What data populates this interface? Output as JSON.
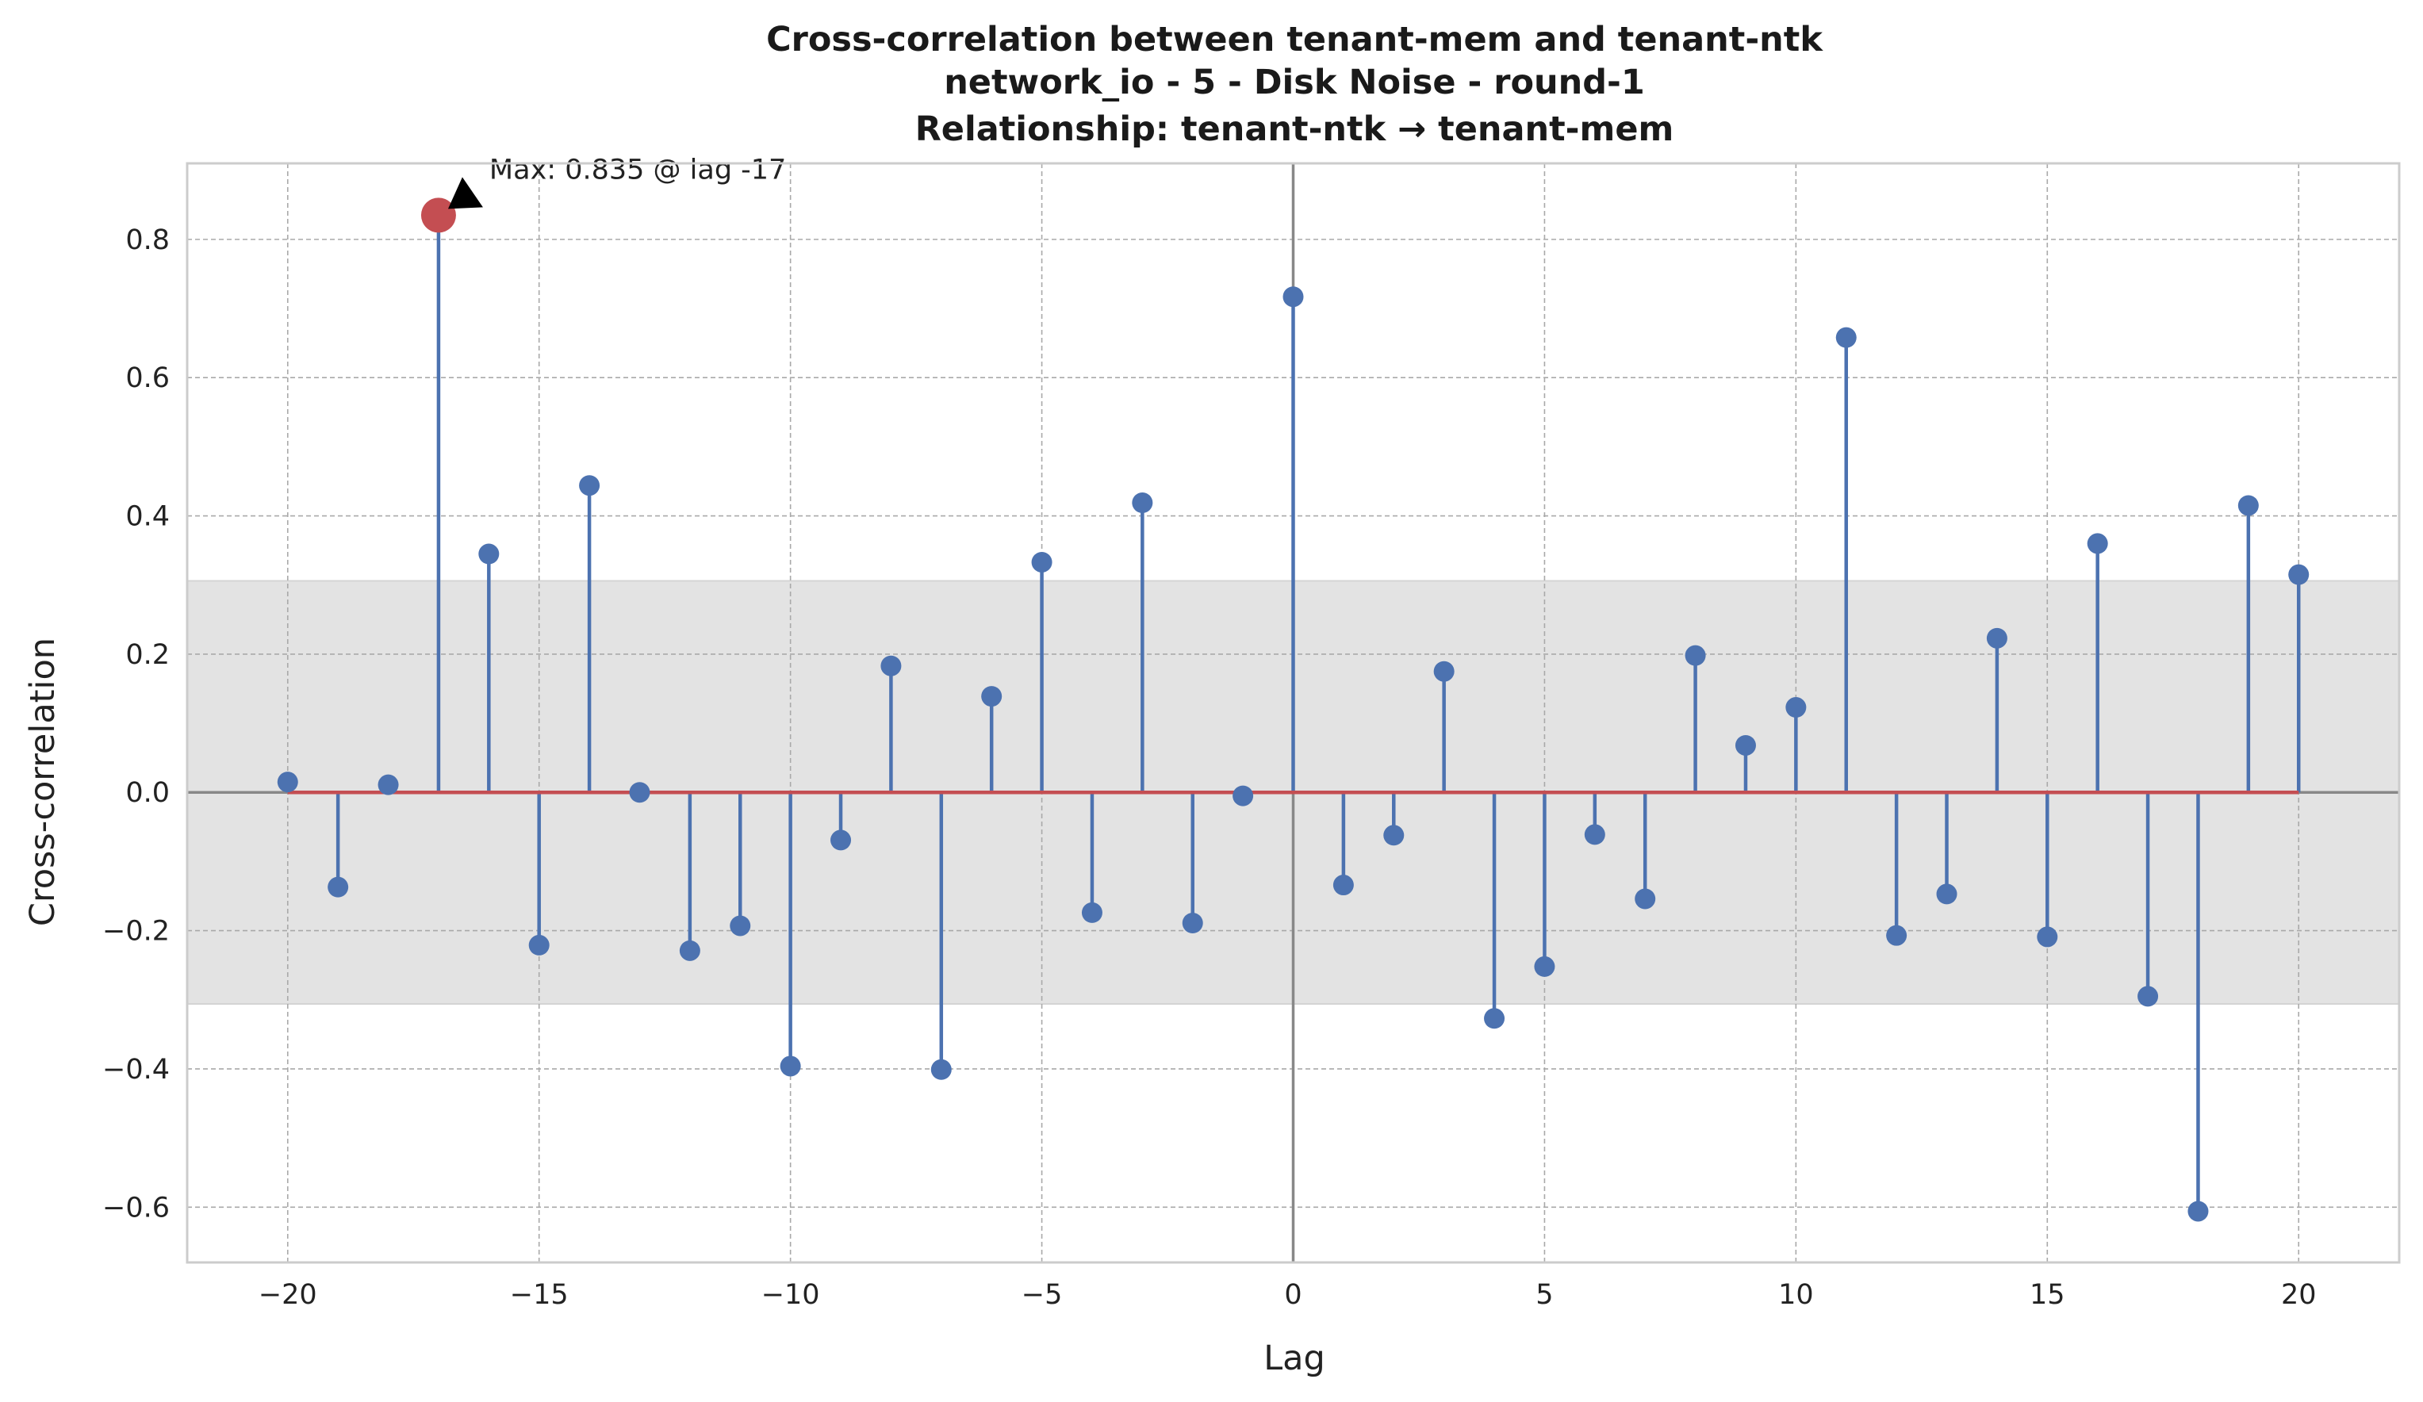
{
  "chart_data": {
    "type": "stem",
    "title_lines": [
      "Cross-correlation between tenant-mem and tenant-ntk",
      "network_io - 5 - Disk Noise - round-1",
      "Relationship: tenant-ntk → tenant-mem"
    ],
    "xlabel": "Lag",
    "ylabel": "Cross-correlation",
    "xlim": [
      -22,
      22
    ],
    "ylim": [
      -0.68,
      0.91
    ],
    "xticks": [
      -20,
      -15,
      -10,
      -5,
      0,
      5,
      10,
      15,
      20
    ],
    "xtick_labels": [
      "−20",
      "−15",
      "−10",
      "−5",
      "0",
      "5",
      "10",
      "15",
      "20"
    ],
    "yticks": [
      -0.6,
      -0.4,
      -0.2,
      0.0,
      0.2,
      0.4,
      0.6,
      0.8
    ],
    "ytick_labels": [
      "−0.6",
      "−0.4",
      "−0.2",
      "0.0",
      "0.2",
      "0.4",
      "0.6",
      "0.8"
    ],
    "grid": true,
    "confidence_band": [
      -0.306,
      0.306
    ],
    "lags": [
      -20,
      -19,
      -18,
      -17,
      -16,
      -15,
      -14,
      -13,
      -12,
      -11,
      -10,
      -9,
      -8,
      -7,
      -6,
      -5,
      -4,
      -3,
      -2,
      -1,
      0,
      1,
      2,
      3,
      4,
      5,
      6,
      7,
      8,
      9,
      10,
      11,
      12,
      13,
      14,
      15,
      16,
      17,
      18,
      19,
      20
    ],
    "values": [
      0.015,
      -0.137,
      0.011,
      0.835,
      0.345,
      -0.221,
      0.444,
      0.0,
      -0.229,
      -0.193,
      -0.396,
      -0.069,
      0.183,
      -0.401,
      0.139,
      0.333,
      -0.174,
      0.419,
      -0.189,
      -0.005,
      0.717,
      -0.134,
      -0.062,
      0.175,
      -0.327,
      -0.252,
      -0.061,
      -0.154,
      0.198,
      0.068,
      0.123,
      0.658,
      -0.207,
      -0.147,
      0.223,
      -0.209,
      0.36,
      -0.295,
      -0.606,
      0.415,
      0.315
    ],
    "max_point": {
      "lag": -17,
      "value": 0.835
    },
    "annotation": "Max: 0.835 @ lag -17",
    "colors": {
      "stem": "#4c72b0",
      "marker": "#4c72b0",
      "baseline": "#c44e52",
      "max_marker": "#c44e52",
      "band": "#e3e3e3",
      "zero_lines": "#888888"
    }
  }
}
